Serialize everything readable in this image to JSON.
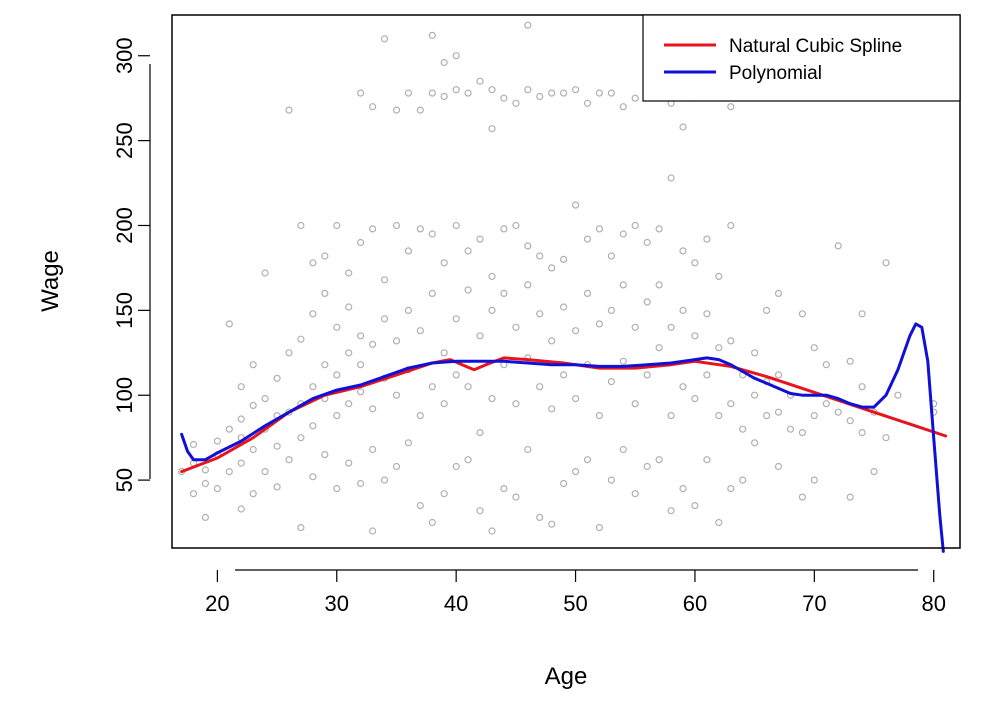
{
  "chart_data": {
    "type": "scatter",
    "xlabel": "Age",
    "ylabel": "Wage",
    "xlim": [
      16.2,
      82.2
    ],
    "ylim": [
      10,
      324
    ],
    "xticks": [
      20,
      30,
      40,
      50,
      60,
      70,
      80
    ],
    "yticks": [
      50,
      100,
      150,
      200,
      250,
      300
    ],
    "xtick_labels": [
      "20",
      "30",
      "40",
      "50",
      "60",
      "70",
      "80"
    ],
    "ytick_labels": [
      "50",
      "100",
      "150",
      "200",
      "250",
      "300"
    ],
    "legend": {
      "position": "top-right",
      "entries": [
        {
          "label": "Natural Cubic Spline",
          "color": "#e8141c"
        },
        {
          "label": "Polynomial",
          "color": "#1010d8"
        }
      ]
    },
    "point_color": "#b0b0b0",
    "series": [
      {
        "name": "Natural Cubic Spline",
        "color": "#e8141c",
        "kind": "line",
        "x": [
          17,
          20,
          23,
          26,
          29,
          32,
          35,
          38,
          39.5,
          40.5,
          41.5,
          42.5,
          44,
          46,
          49,
          52,
          55,
          58,
          60,
          63,
          66,
          69,
          72,
          75,
          78,
          81
        ],
        "y": [
          55,
          63,
          75,
          90,
          100,
          105,
          112,
          119,
          121,
          118,
          115,
          118,
          122,
          121,
          119,
          116,
          116,
          118,
          120,
          117,
          111,
          104,
          97,
          90,
          83,
          76
        ]
      },
      {
        "name": "Polynomial",
        "color": "#1010d8",
        "kind": "line",
        "x": [
          17,
          17.5,
          18,
          19,
          20,
          22,
          24,
          26,
          28,
          30,
          32,
          34,
          36,
          38,
          40,
          42,
          44,
          46,
          48,
          50,
          52,
          54,
          56,
          58,
          60,
          61,
          62,
          63,
          64,
          65,
          66,
          67,
          68,
          69,
          70,
          71,
          72,
          73,
          74,
          75,
          76,
          77,
          78,
          78.5,
          79,
          79.5,
          80,
          80.5,
          80.8
        ],
        "y": [
          77,
          67,
          62,
          62,
          66,
          73,
          82,
          90,
          98,
          103,
          106,
          111,
          116,
          119,
          120,
          120,
          120,
          119,
          118,
          118,
          117,
          117,
          118,
          119,
          121,
          122,
          121,
          118,
          114,
          110,
          107,
          104,
          101,
          100,
          100,
          100,
          98,
          95,
          93,
          93,
          100,
          115,
          135,
          142,
          140,
          120,
          75,
          30,
          8
        ]
      }
    ],
    "points": [
      [
        17,
        55
      ],
      [
        18,
        42
      ],
      [
        18,
        60
      ],
      [
        18,
        71
      ],
      [
        19,
        28
      ],
      [
        19,
        48
      ],
      [
        19,
        56
      ],
      [
        20,
        45
      ],
      [
        20,
        65
      ],
      [
        20,
        73
      ],
      [
        21,
        55
      ],
      [
        21,
        80
      ],
      [
        21,
        142
      ],
      [
        22,
        33
      ],
      [
        22,
        60
      ],
      [
        22,
        75
      ],
      [
        22,
        86
      ],
      [
        22,
        105
      ],
      [
        23,
        42
      ],
      [
        23,
        68
      ],
      [
        23,
        94
      ],
      [
        23,
        118
      ],
      [
        24,
        55
      ],
      [
        24,
        80
      ],
      [
        24,
        98
      ],
      [
        24,
        172
      ],
      [
        25,
        46
      ],
      [
        25,
        70
      ],
      [
        25,
        88
      ],
      [
        25,
        110
      ],
      [
        26,
        62
      ],
      [
        26,
        90
      ],
      [
        26,
        125
      ],
      [
        26,
        268
      ],
      [
        27,
        22
      ],
      [
        27,
        75
      ],
      [
        27,
        95
      ],
      [
        27,
        133
      ],
      [
        27,
        200
      ],
      [
        28,
        52
      ],
      [
        28,
        82
      ],
      [
        28,
        105
      ],
      [
        28,
        148
      ],
      [
        28,
        178
      ],
      [
        29,
        65
      ],
      [
        29,
        98
      ],
      [
        29,
        118
      ],
      [
        29,
        160
      ],
      [
        29,
        182
      ],
      [
        30,
        45
      ],
      [
        30,
        88
      ],
      [
        30,
        112
      ],
      [
        30,
        140
      ],
      [
        30,
        200
      ],
      [
        31,
        60
      ],
      [
        31,
        95
      ],
      [
        31,
        125
      ],
      [
        31,
        152
      ],
      [
        31,
        172
      ],
      [
        32,
        48
      ],
      [
        32,
        102
      ],
      [
        32,
        118
      ],
      [
        32,
        135
      ],
      [
        32,
        190
      ],
      [
        32,
        278
      ],
      [
        33,
        20
      ],
      [
        33,
        68
      ],
      [
        33,
        92
      ],
      [
        33,
        130
      ],
      [
        33,
        198
      ],
      [
        33,
        270
      ],
      [
        34,
        50
      ],
      [
        34,
        110
      ],
      [
        34,
        145
      ],
      [
        34,
        168
      ],
      [
        34,
        310
      ],
      [
        35,
        58
      ],
      [
        35,
        100
      ],
      [
        35,
        132
      ],
      [
        35,
        200
      ],
      [
        35,
        268
      ],
      [
        36,
        72
      ],
      [
        36,
        115
      ],
      [
        36,
        150
      ],
      [
        36,
        185
      ],
      [
        36,
        278
      ],
      [
        37,
        35
      ],
      [
        37,
        88
      ],
      [
        37,
        138
      ],
      [
        37,
        198
      ],
      [
        37,
        268
      ],
      [
        38,
        25
      ],
      [
        38,
        105
      ],
      [
        38,
        160
      ],
      [
        38,
        195
      ],
      [
        38,
        312
      ],
      [
        38,
        278
      ],
      [
        39,
        42
      ],
      [
        39,
        95
      ],
      [
        39,
        125
      ],
      [
        39,
        178
      ],
      [
        39,
        296
      ],
      [
        39,
        276
      ],
      [
        40,
        58
      ],
      [
        40,
        112
      ],
      [
        40,
        145
      ],
      [
        40,
        200
      ],
      [
        40,
        300
      ],
      [
        40,
        280
      ],
      [
        41,
        62
      ],
      [
        41,
        105
      ],
      [
        41,
        162
      ],
      [
        41,
        185
      ],
      [
        41,
        278
      ],
      [
        42,
        32
      ],
      [
        42,
        78
      ],
      [
        42,
        135
      ],
      [
        42,
        192
      ],
      [
        42,
        285
      ],
      [
        43,
        20
      ],
      [
        43,
        98
      ],
      [
        43,
        150
      ],
      [
        43,
        170
      ],
      [
        43,
        257
      ],
      [
        43,
        280
      ],
      [
        44,
        45
      ],
      [
        44,
        118
      ],
      [
        44,
        160
      ],
      [
        44,
        198
      ],
      [
        44,
        275
      ],
      [
        45,
        40
      ],
      [
        45,
        95
      ],
      [
        45,
        140
      ],
      [
        45,
        200
      ],
      [
        45,
        272
      ],
      [
        46,
        68
      ],
      [
        46,
        122
      ],
      [
        46,
        165
      ],
      [
        46,
        188
      ],
      [
        46,
        318
      ],
      [
        46,
        280
      ],
      [
        47,
        28
      ],
      [
        47,
        105
      ],
      [
        47,
        148
      ],
      [
        47,
        182
      ],
      [
        47,
        276
      ],
      [
        48,
        24
      ],
      [
        48,
        92
      ],
      [
        48,
        132
      ],
      [
        48,
        175
      ],
      [
        48,
        278
      ],
      [
        49,
        48
      ],
      [
        49,
        112
      ],
      [
        49,
        152
      ],
      [
        49,
        180
      ],
      [
        49,
        278
      ],
      [
        50,
        55
      ],
      [
        50,
        98
      ],
      [
        50,
        138
      ],
      [
        50,
        212
      ],
      [
        50,
        280
      ],
      [
        51,
        62
      ],
      [
        51,
        118
      ],
      [
        51,
        160
      ],
      [
        51,
        192
      ],
      [
        51,
        272
      ],
      [
        52,
        22
      ],
      [
        52,
        88
      ],
      [
        52,
        142
      ],
      [
        52,
        198
      ],
      [
        52,
        278
      ],
      [
        53,
        50
      ],
      [
        53,
        108
      ],
      [
        53,
        150
      ],
      [
        53,
        182
      ],
      [
        53,
        278
      ],
      [
        54,
        68
      ],
      [
        54,
        120
      ],
      [
        54,
        165
      ],
      [
        54,
        195
      ],
      [
        54,
        270
      ],
      [
        55,
        42
      ],
      [
        55,
        95
      ],
      [
        55,
        140
      ],
      [
        55,
        200
      ],
      [
        55,
        275
      ],
      [
        56,
        58
      ],
      [
        56,
        112
      ],
      [
        56,
        155
      ],
      [
        56,
        190
      ],
      [
        56,
        278
      ],
      [
        57,
        62
      ],
      [
        57,
        128
      ],
      [
        57,
        165
      ],
      [
        57,
        198
      ],
      [
        57,
        276
      ],
      [
        58,
        32
      ],
      [
        58,
        88
      ],
      [
        58,
        140
      ],
      [
        58,
        228
      ],
      [
        58,
        272
      ],
      [
        59,
        45
      ],
      [
        59,
        105
      ],
      [
        59,
        150
      ],
      [
        59,
        185
      ],
      [
        59,
        258
      ],
      [
        60,
        35
      ],
      [
        60,
        98
      ],
      [
        60,
        135
      ],
      [
        60,
        178
      ],
      [
        60,
        275
      ],
      [
        61,
        62
      ],
      [
        61,
        112
      ],
      [
        61,
        148
      ],
      [
        61,
        192
      ],
      [
        61,
        282
      ],
      [
        62,
        25
      ],
      [
        62,
        88
      ],
      [
        62,
        128
      ],
      [
        62,
        170
      ],
      [
        62,
        278
      ],
      [
        63,
        45
      ],
      [
        63,
        95
      ],
      [
        63,
        132
      ],
      [
        63,
        200
      ],
      [
        63,
        270
      ],
      [
        64,
        50
      ],
      [
        64,
        80
      ],
      [
        64,
        112
      ],
      [
        65,
        72
      ],
      [
        65,
        100
      ],
      [
        65,
        125
      ],
      [
        66,
        88
      ],
      [
        66,
        108
      ],
      [
        66,
        150
      ],
      [
        67,
        58
      ],
      [
        67,
        90
      ],
      [
        67,
        112
      ],
      [
        67,
        160
      ],
      [
        68,
        80
      ],
      [
        68,
        100
      ],
      [
        69,
        40
      ],
      [
        69,
        78
      ],
      [
        69,
        148
      ],
      [
        70,
        50
      ],
      [
        70,
        88
      ],
      [
        70,
        128
      ],
      [
        71,
        95
      ],
      [
        71,
        118
      ],
      [
        72,
        90
      ],
      [
        72,
        188
      ],
      [
        73,
        40
      ],
      [
        73,
        85
      ],
      [
        73,
        120
      ],
      [
        74,
        78
      ],
      [
        74,
        105
      ],
      [
        74,
        148
      ],
      [
        75,
        55
      ],
      [
        75,
        90
      ],
      [
        76,
        75
      ],
      [
        76,
        178
      ],
      [
        77,
        100
      ],
      [
        80,
        90
      ],
      [
        80,
        95
      ]
    ]
  }
}
